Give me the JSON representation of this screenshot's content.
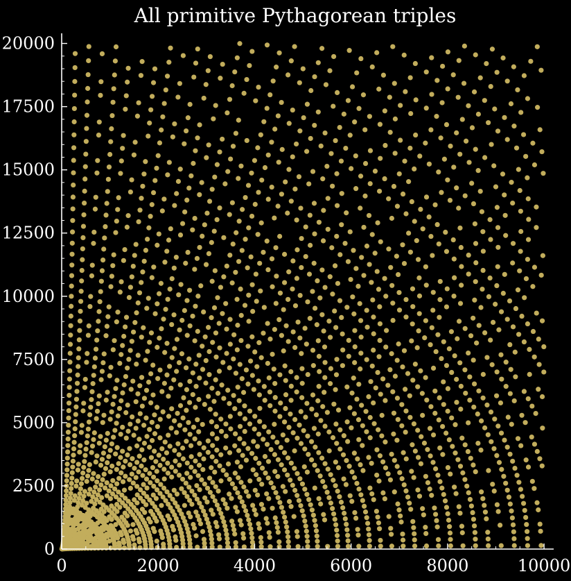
{
  "chart_data": {
    "type": "scatter",
    "title": "All primitive Pythagorean triples",
    "xlabel": "",
    "ylabel": "",
    "xlim": [
      0,
      10200
    ],
    "ylim": [
      0,
      20400
    ],
    "xticks": [
      0,
      2000,
      4000,
      6000,
      8000,
      10000
    ],
    "xtick_labels": [
      "0",
      "2000",
      "4000",
      "6000",
      "8000",
      "10000"
    ],
    "yticks": [
      0,
      2500,
      5000,
      7500,
      10000,
      12500,
      15000,
      17500,
      20000
    ],
    "ytick_labels": [
      "0",
      "2500",
      "5000",
      "7500",
      "10000",
      "12500",
      "15000",
      "17500",
      "20000"
    ],
    "grid": false,
    "legend": "none",
    "marker_color": "#c2ad5c",
    "background": "#000000",
    "axis_color": "#ffffff",
    "generation": "For every pair m > n >= 1, m - n odd, gcd(m,n) = 1: point (x, y) = (2mn, m^2 - n^2) with x <= 10000 and y <= 20000"
  }
}
